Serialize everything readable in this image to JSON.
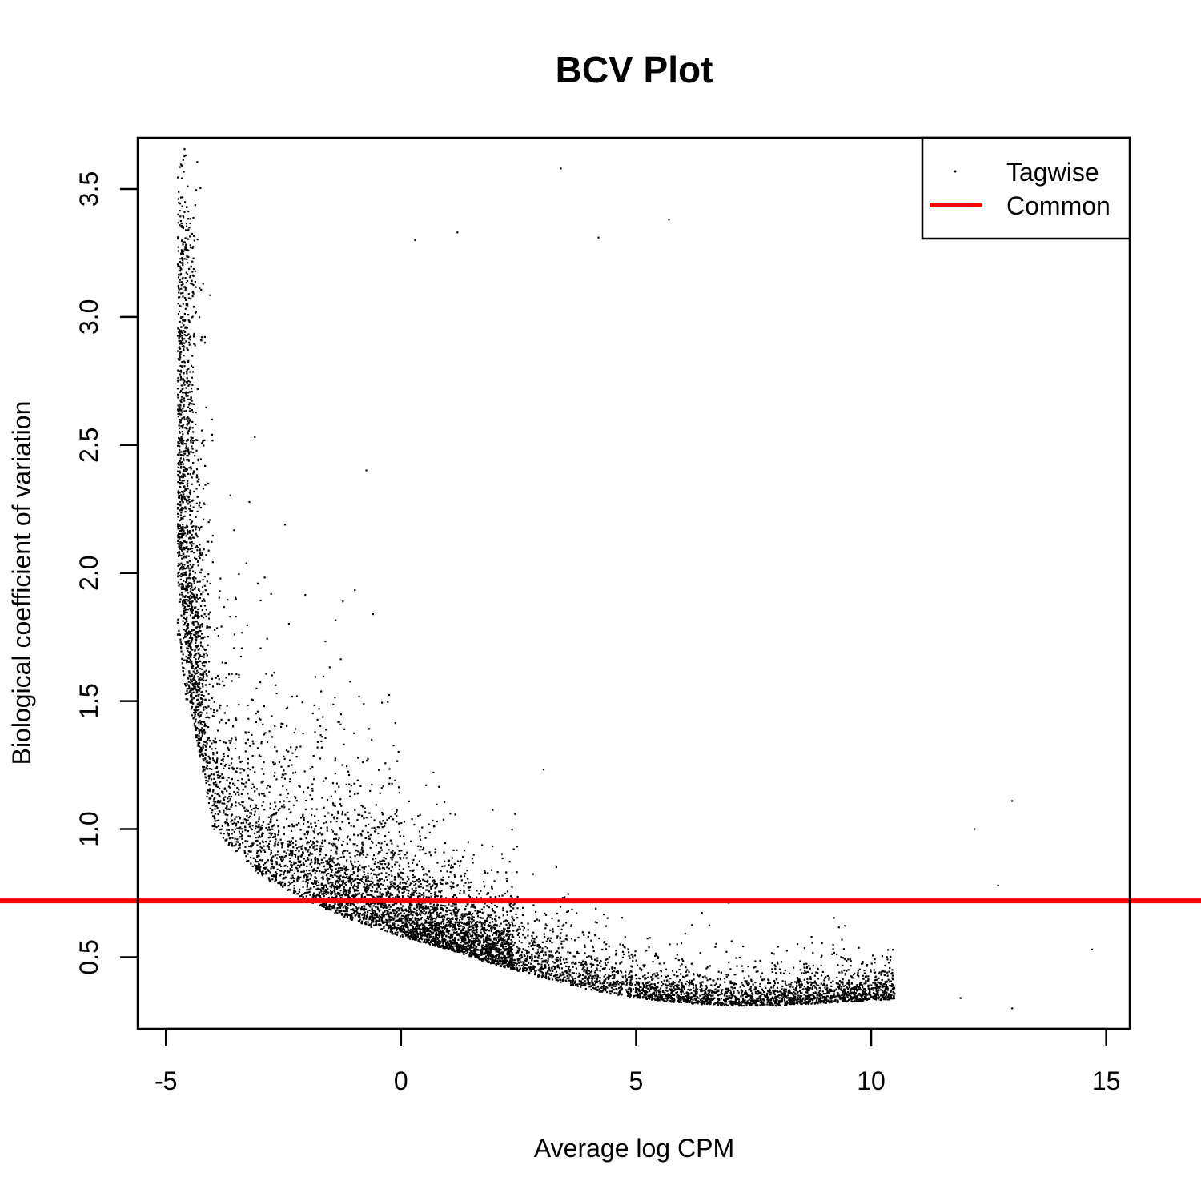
{
  "chart_data": {
    "type": "scatter",
    "title": "BCV Plot",
    "xlabel": "Average log CPM",
    "ylabel": "Biological coefficient of variation",
    "xlim": [
      -5.6,
      15.5
    ],
    "ylim": [
      0.22,
      3.7
    ],
    "x_ticks": [
      -5,
      0,
      5,
      10,
      15
    ],
    "x_tick_labels": [
      "-5",
      "0",
      "5",
      "10",
      "15"
    ],
    "y_ticks": [
      0.5,
      1.0,
      1.5,
      2.0,
      2.5,
      3.0,
      3.5
    ],
    "y_tick_labels": [
      "0.5",
      "1.0",
      "1.5",
      "2.0",
      "2.5",
      "3.0",
      "3.5"
    ],
    "grid": false,
    "legend": {
      "position": "top-right",
      "entries": [
        {
          "label": "Tagwise",
          "symbol": "point",
          "color": "#000000"
        },
        {
          "label": "Common",
          "symbol": "line",
          "color": "#ff0000"
        }
      ]
    },
    "series": [
      {
        "name": "Tagwise",
        "kind": "points",
        "color": "#000000",
        "approx_count": 26000,
        "trend_x": [
          -4.7,
          -4.5,
          -4,
          -3,
          -2,
          -1,
          0,
          1,
          2,
          3,
          4,
          5,
          6,
          7,
          8,
          9,
          10,
          11
        ],
        "trend_y": [
          2.0,
          1.5,
          1.0,
          0.82,
          0.72,
          0.64,
          0.58,
          0.53,
          0.47,
          0.42,
          0.37,
          0.34,
          0.32,
          0.31,
          0.31,
          0.32,
          0.33,
          0.34
        ],
        "outliers": [
          {
            "x": 3.4,
            "y": 3.58
          },
          {
            "x": 5.7,
            "y": 3.38
          },
          {
            "x": 1.2,
            "y": 3.33
          },
          {
            "x": 4.2,
            "y": 3.31
          },
          {
            "x": 0.3,
            "y": 3.3
          },
          {
            "x": 13.0,
            "y": 1.11
          },
          {
            "x": 14.7,
            "y": 0.53
          },
          {
            "x": 12.7,
            "y": 0.78
          },
          {
            "x": 13.0,
            "y": 0.3
          },
          {
            "x": 12.2,
            "y": 1.0
          },
          {
            "x": 11.9,
            "y": 0.34
          }
        ]
      },
      {
        "name": "Common",
        "kind": "hline",
        "y": 0.72,
        "color": "#ff0000"
      }
    ]
  }
}
